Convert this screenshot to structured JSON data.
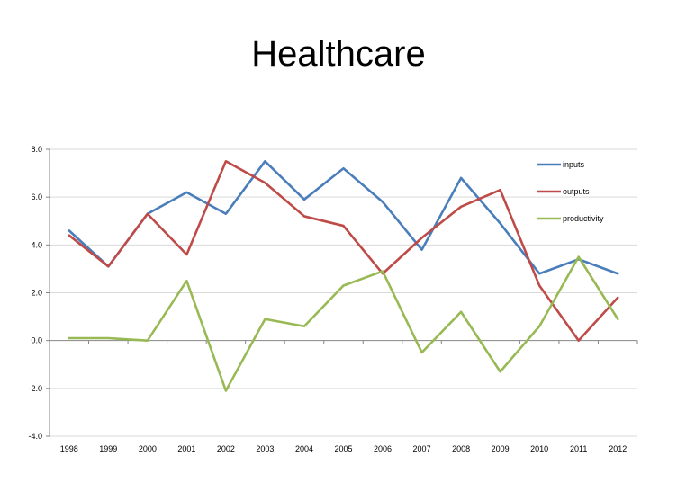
{
  "chart_data": {
    "type": "line",
    "title": "Healthcare",
    "xlabel": "",
    "ylabel": "",
    "ylim": [
      -4.0,
      8.0
    ],
    "yticks": [
      "8.0",
      "6.0",
      "4.0",
      "2.0",
      "0.0",
      "-2.0",
      "-4.0"
    ],
    "ytick_values": [
      8,
      6,
      4,
      2,
      0,
      -2,
      -4
    ],
    "categories": [
      "1998",
      "1999",
      "2000",
      "2001",
      "2002",
      "2003",
      "2004",
      "2005",
      "2006",
      "2007",
      "2008",
      "2009",
      "2010",
      "2011",
      "2012"
    ],
    "grid": true,
    "legend_position": "top-right",
    "series": [
      {
        "name": "inputs",
        "color": "#4a7ebb",
        "values": [
          4.6,
          3.1,
          5.3,
          6.2,
          5.3,
          7.5,
          5.9,
          7.2,
          5.8,
          3.8,
          6.8,
          4.9,
          2.8,
          3.4,
          2.8
        ]
      },
      {
        "name": "outputs",
        "color": "#be4b48",
        "values": [
          4.4,
          3.1,
          5.3,
          3.6,
          7.5,
          6.6,
          5.2,
          4.8,
          2.8,
          4.3,
          5.6,
          6.3,
          2.3,
          0.0,
          1.8
        ]
      },
      {
        "name": "productivity",
        "color": "#98b954",
        "values": [
          0.1,
          0.1,
          0.0,
          2.5,
          -2.1,
          0.9,
          0.6,
          2.3,
          2.9,
          -0.5,
          1.2,
          -1.3,
          0.6,
          3.5,
          0.9
        ]
      }
    ]
  }
}
